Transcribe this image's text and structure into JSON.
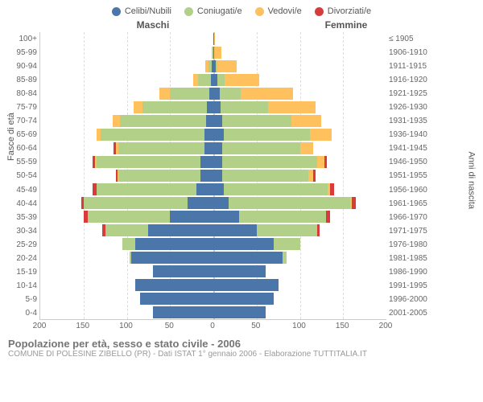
{
  "legend": [
    {
      "label": "Celibi/Nubili",
      "color": "#4b76a9"
    },
    {
      "label": "Coniugati/e",
      "color": "#b2d088"
    },
    {
      "label": "Vedovi/e",
      "color": "#fec15d"
    },
    {
      "label": "Divorziati/e",
      "color": "#d73c3a"
    }
  ],
  "header_left": "Maschi",
  "header_right": "Femmine",
  "axis_left_label": "Fasce di età",
  "axis_right_label": "Anni di nascita",
  "title": "Popolazione per età, sesso e stato civile - 2006",
  "subtitle": "COMUNE DI POLESINE ZIBELLO (PR) - Dati ISTAT 1° gennaio 2006 - Elaborazione TUTTITALIA.IT",
  "x_max": 200,
  "x_ticks": [
    200,
    150,
    100,
    50,
    0,
    50,
    100,
    150,
    200
  ],
  "age_labels": [
    "100+",
    "95-99",
    "90-94",
    "85-89",
    "80-84",
    "75-79",
    "70-74",
    "65-69",
    "60-64",
    "55-59",
    "50-54",
    "45-49",
    "40-44",
    "35-39",
    "30-34",
    "25-29",
    "20-24",
    "15-19",
    "10-14",
    "5-9",
    "0-4"
  ],
  "year_labels": [
    "≤ 1905",
    "1906-1910",
    "1911-1915",
    "1916-1920",
    "1921-1925",
    "1926-1930",
    "1931-1935",
    "1936-1940",
    "1941-1945",
    "1946-1950",
    "1951-1955",
    "1956-1960",
    "1961-1965",
    "1966-1970",
    "1971-1975",
    "1976-1980",
    "1981-1985",
    "1986-1990",
    "1991-1995",
    "1996-2000",
    "2001-2005"
  ],
  "colors": {
    "cel": "#4b76a9",
    "con": "#b2d088",
    "ved": "#fec15d",
    "div": "#d73c3a"
  },
  "rows": [
    {
      "m": {
        "cel": 0,
        "con": 0,
        "ved": 0,
        "div": 0
      },
      "f": {
        "cel": 1,
        "con": 0,
        "ved": 1,
        "div": 0
      }
    },
    {
      "m": {
        "cel": 0,
        "con": 1,
        "ved": 1,
        "div": 0
      },
      "f": {
        "cel": 1,
        "con": 0,
        "ved": 8,
        "div": 0
      }
    },
    {
      "m": {
        "cel": 2,
        "con": 4,
        "ved": 3,
        "div": 0
      },
      "f": {
        "cel": 3,
        "con": 2,
        "ved": 22,
        "div": 0
      }
    },
    {
      "m": {
        "cel": 3,
        "con": 15,
        "ved": 5,
        "div": 0
      },
      "f": {
        "cel": 5,
        "con": 8,
        "ved": 40,
        "div": 0
      }
    },
    {
      "m": {
        "cel": 5,
        "con": 45,
        "ved": 12,
        "div": 0
      },
      "f": {
        "cel": 7,
        "con": 25,
        "ved": 60,
        "div": 0
      }
    },
    {
      "m": {
        "cel": 7,
        "con": 75,
        "ved": 10,
        "div": 0
      },
      "f": {
        "cel": 8,
        "con": 55,
        "ved": 55,
        "div": 0
      }
    },
    {
      "m": {
        "cel": 8,
        "con": 100,
        "ved": 8,
        "div": 0
      },
      "f": {
        "cel": 10,
        "con": 80,
        "ved": 35,
        "div": 0
      }
    },
    {
      "m": {
        "cel": 10,
        "con": 120,
        "ved": 5,
        "div": 0
      },
      "f": {
        "cel": 12,
        "con": 100,
        "ved": 25,
        "div": 0
      }
    },
    {
      "m": {
        "cel": 10,
        "con": 100,
        "ved": 3,
        "div": 2
      },
      "f": {
        "cel": 10,
        "con": 90,
        "ved": 15,
        "div": 0
      }
    },
    {
      "m": {
        "cel": 15,
        "con": 120,
        "ved": 2,
        "div": 3
      },
      "f": {
        "cel": 10,
        "con": 110,
        "ved": 8,
        "div": 3
      }
    },
    {
      "m": {
        "cel": 15,
        "con": 95,
        "ved": 1,
        "div": 2
      },
      "f": {
        "cel": 10,
        "con": 100,
        "ved": 5,
        "div": 3
      }
    },
    {
      "m": {
        "cel": 20,
        "con": 115,
        "ved": 0,
        "div": 5
      },
      "f": {
        "cel": 12,
        "con": 120,
        "ved": 3,
        "div": 5
      }
    },
    {
      "m": {
        "cel": 30,
        "con": 120,
        "ved": 0,
        "div": 3
      },
      "f": {
        "cel": 18,
        "con": 140,
        "ved": 2,
        "div": 5
      }
    },
    {
      "m": {
        "cel": 50,
        "con": 95,
        "ved": 0,
        "div": 5
      },
      "f": {
        "cel": 30,
        "con": 100,
        "ved": 0,
        "div": 5
      }
    },
    {
      "m": {
        "cel": 75,
        "con": 50,
        "ved": 0,
        "div": 3
      },
      "f": {
        "cel": 50,
        "con": 70,
        "ved": 0,
        "div": 3
      }
    },
    {
      "m": {
        "cel": 90,
        "con": 15,
        "ved": 0,
        "div": 0
      },
      "f": {
        "cel": 70,
        "con": 30,
        "ved": 0,
        "div": 0
      }
    },
    {
      "m": {
        "cel": 95,
        "con": 2,
        "ved": 0,
        "div": 0
      },
      "f": {
        "cel": 80,
        "con": 5,
        "ved": 0,
        "div": 0
      }
    },
    {
      "m": {
        "cel": 70,
        "con": 0,
        "ved": 0,
        "div": 0
      },
      "f": {
        "cel": 60,
        "con": 0,
        "ved": 0,
        "div": 0
      }
    },
    {
      "m": {
        "cel": 90,
        "con": 0,
        "ved": 0,
        "div": 0
      },
      "f": {
        "cel": 75,
        "con": 0,
        "ved": 0,
        "div": 0
      }
    },
    {
      "m": {
        "cel": 85,
        "con": 0,
        "ved": 0,
        "div": 0
      },
      "f": {
        "cel": 70,
        "con": 0,
        "ved": 0,
        "div": 0
      }
    },
    {
      "m": {
        "cel": 70,
        "con": 0,
        "ved": 0,
        "div": 0
      },
      "f": {
        "cel": 60,
        "con": 0,
        "ved": 0,
        "div": 0
      }
    }
  ]
}
